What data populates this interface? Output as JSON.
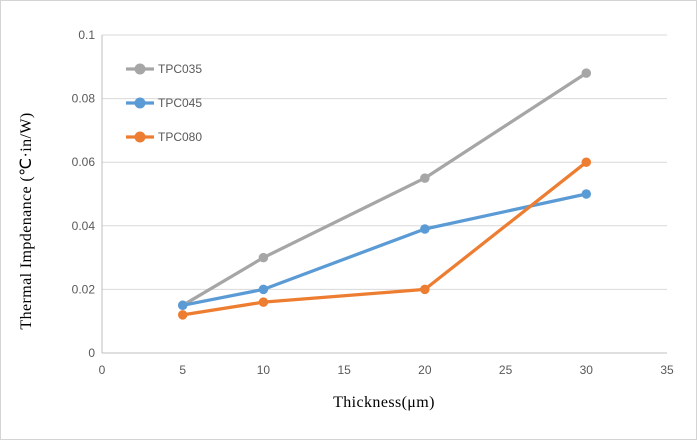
{
  "window": {
    "background": "#ffffff",
    "border_color": "#d4d4d4"
  },
  "chart_data": {
    "type": "line",
    "title": "",
    "xlabel": "Thickness(μm)",
    "ylabel": "Thermal Impdenance (℃·in/W)",
    "x": [
      5,
      10,
      20,
      30
    ],
    "series": [
      {
        "name": "TPC035",
        "color": "#A6A6A6",
        "values": [
          0.015,
          0.03,
          0.055,
          0.088
        ]
      },
      {
        "name": "TPC045",
        "color": "#5B9BD5",
        "values": [
          0.015,
          0.02,
          0.039,
          0.05
        ]
      },
      {
        "name": "TPC080",
        "color": "#ED7D31",
        "values": [
          0.012,
          0.016,
          0.02,
          0.06
        ]
      }
    ],
    "xlim": [
      0,
      35
    ],
    "ylim": [
      0,
      0.1
    ],
    "xticks": {
      "values": [
        0,
        5,
        10,
        15,
        20,
        25,
        30,
        35
      ],
      "labels": [
        "0",
        "5",
        "10",
        "15",
        "20",
        "25",
        "30",
        "35"
      ]
    },
    "yticks": {
      "values": [
        0,
        0.02,
        0.04,
        0.06,
        0.08,
        0.1
      ],
      "labels": [
        "0",
        "0.02",
        "0.04",
        "0.06",
        "0.08",
        "0.1"
      ]
    },
    "grid": "horizontal",
    "legend_position": "inside-top-left",
    "style": {
      "gridline_color": "#D9D9D9",
      "axis_line_color": "#BFBFBF",
      "tick_text_color": "#595959",
      "legend_text_color": "#595959",
      "line_width": 3.25,
      "marker": "circle",
      "marker_radius": 4.75
    }
  }
}
